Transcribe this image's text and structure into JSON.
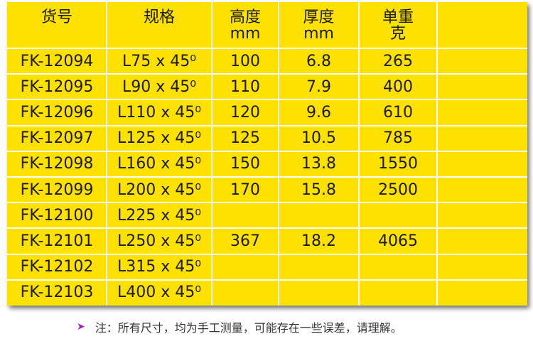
{
  "table": {
    "header": [
      [
        "货号"
      ],
      [
        "规格"
      ],
      [
        "高度",
        "mm"
      ],
      [
        "厚度",
        "mm"
      ],
      [
        "单重",
        "克"
      ]
    ],
    "rows": [
      [
        "FK-12094",
        "L75 x 45⁰",
        100,
        6.8,
        265
      ],
      [
        "FK-12095",
        "L90 x 45⁰",
        110,
        7.9,
        400
      ],
      [
        "FK-12096",
        "L110 x 45⁰",
        120,
        9.6,
        610
      ],
      [
        "FK-12097",
        "L125 x 45⁰",
        125,
        10.5,
        785
      ],
      [
        "FK-12098",
        "L160 x 45⁰",
        150,
        13.8,
        1550
      ],
      [
        "FK-12099",
        "L200 x 45⁰",
        170,
        15.8,
        2500
      ],
      [
        "FK-12100",
        "L225 x 45⁰",
        null,
        null,
        null
      ],
      [
        "FK-12101",
        "L250 x 45⁰",
        367,
        18.2,
        4065
      ],
      [
        "FK-12102",
        "L315 x 45⁰",
        null,
        null,
        null
      ],
      [
        "FK-12103",
        "L400 x 45⁰",
        null,
        null,
        null
      ]
    ]
  },
  "note": "注：所有尺寸，均为手工测量，可能存在一些误差，请理解。"
}
